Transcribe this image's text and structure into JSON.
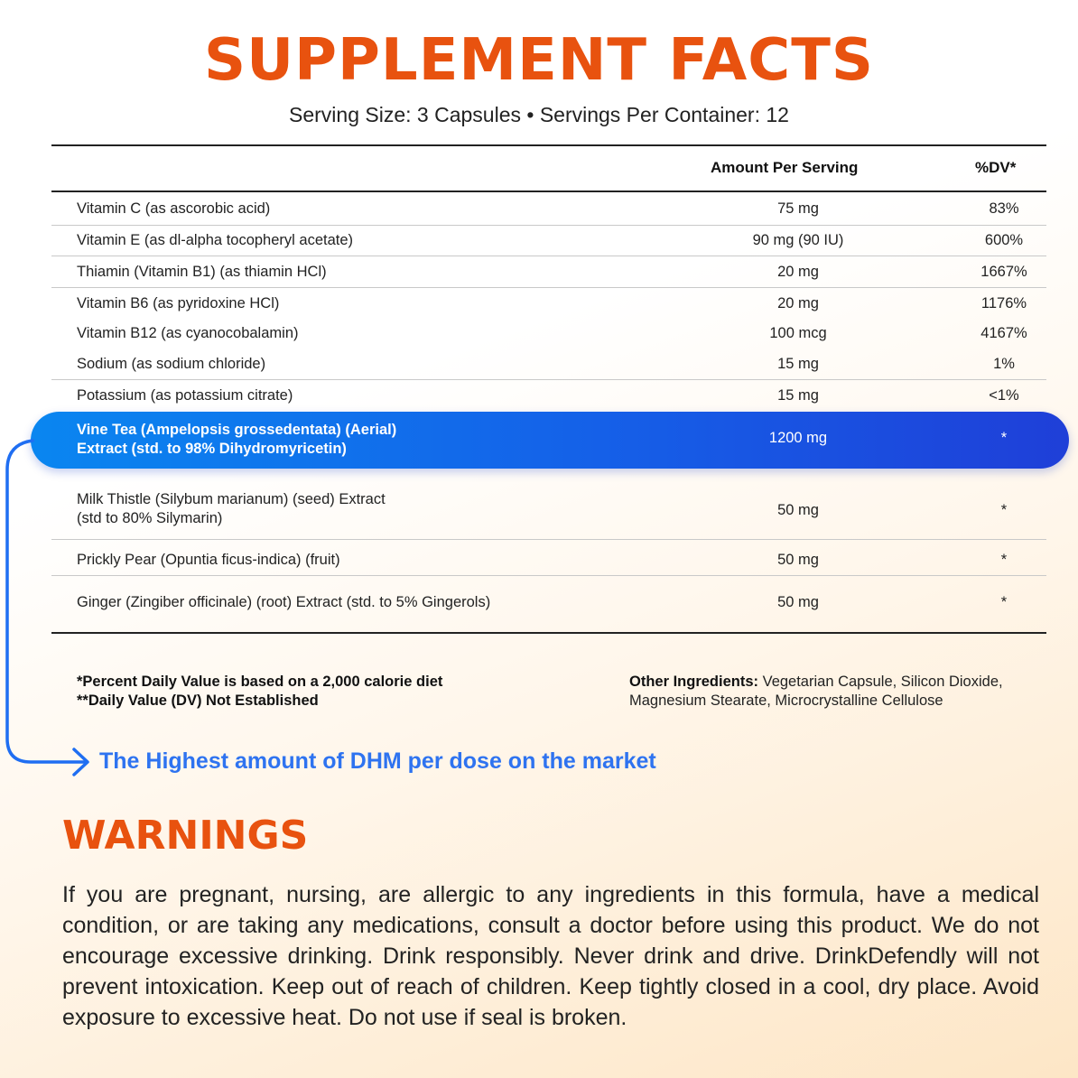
{
  "header": {
    "title": "SUPPLEMENT FACTS",
    "serving_line": "Serving Size: 3 Capsules • Servings Per Container: 12"
  },
  "table": {
    "col_amount": "Amount Per Serving",
    "col_dv": "%DV*",
    "rows": [
      {
        "name": "Vitamin C (as ascorobic acid)",
        "amount": "75 mg",
        "dv": "83%"
      },
      {
        "name": "Vitamin E (as dl-alpha tocopheryl acetate)",
        "amount": "90 mg (90 IU)",
        "dv": "600%"
      },
      {
        "name": "Thiamin (Vitamin B1) (as thiamin HCl)",
        "amount": "20 mg",
        "dv": "1667%"
      },
      {
        "name": "Vitamin B6 (as pyridoxine HCl)",
        "amount": "20 mg",
        "dv": "1176%"
      },
      {
        "name": "Vitamin B12 (as cyanocobalamin)",
        "amount": "100 mcg",
        "dv": "4167%"
      },
      {
        "name": "Sodium (as sodium chloride)",
        "amount": "15 mg",
        "dv": "1%"
      },
      {
        "name": "Potassium (as potassium citrate)",
        "amount": "15 mg",
        "dv": "<1%"
      }
    ],
    "highlight": {
      "name_line1": "Vine Tea (Ampelopsis grossedentata) (Aerial)",
      "name_line2": "Extract (std. to 98% Dihydromyricetin)",
      "amount": "1200 mg",
      "dv": "*"
    },
    "rows2": [
      {
        "name_line1": "Milk Thistle (Silybum marianum) (seed) Extract",
        "name_line2": "(std to 80% Silymarin)",
        "amount": "50 mg",
        "dv": "*"
      },
      {
        "name_line1": "Prickly Pear (Opuntia ficus-indica) (fruit)",
        "name_line2": "",
        "amount": "50 mg",
        "dv": "*"
      },
      {
        "name_line1": "Ginger (Zingiber officinale) (root) Extract  (std. to 5% Gingerols)",
        "name_line2": "",
        "amount": "50 mg",
        "dv": "*"
      }
    ]
  },
  "footnotes": {
    "line1": "*Percent Daily Value is based on a 2,000 calorie diet",
    "line2": "**Daily Value (DV) Not Established",
    "other_label": "Other Ingredients:",
    "other_text": " Vegetarian Capsule, Silicon Dioxide, Magnesium Stearate, Microcrystalline Cellulose"
  },
  "callout": {
    "text": "The Highest amount of DHM per dose on the market",
    "color": "#2e73f0",
    "icon": "arrow-right-icon"
  },
  "warnings": {
    "title": "WARNINGS",
    "text": "If you are pregnant, nursing, are allergic to any ingredients in this formula, have a medical condition, or are taking any medications, consult a doctor before using this product. We do not encourage excessive drinking. Drink responsibly. Never drink and drive. DrinkDefendly will not prevent intoxication. Keep out of reach of children. Keep tightly closed in a cool, dry place. Avoid exposure to excessive heat. Do not use if seal is broken."
  },
  "colors": {
    "accent_orange": "#e8520f",
    "highlight_blue": "#1560e8"
  }
}
